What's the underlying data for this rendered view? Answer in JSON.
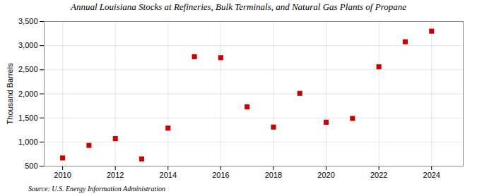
{
  "chart_data": {
    "type": "scatter",
    "title": "Annual Louisiana Stocks at Refineries, Bulk Terminals, and Natural Gas Plants of Propane",
    "ylabel": "Thousand Barrels",
    "annotations": [
      "Source: U.S. Energy Information Administration"
    ],
    "x": [
      2010,
      2011,
      2012,
      2013,
      2014,
      2015,
      2016,
      2017,
      2018,
      2019,
      2020,
      2021,
      2022,
      2023,
      2024
    ],
    "values": [
      670,
      930,
      1070,
      650,
      1290,
      2770,
      2750,
      1730,
      1310,
      2010,
      1410,
      1490,
      2560,
      3080,
      3300
    ],
    "color": "#cc0000",
    "marker": "square",
    "xlim": [
      2009.3,
      2025.2
    ],
    "xticks": [
      2010,
      2012,
      2014,
      2016,
      2018,
      2020,
      2022,
      2024
    ],
    "ylim": [
      500,
      3500
    ],
    "yticks": [
      500,
      {
        "value": 1000,
        "label": "1,000"
      },
      {
        "value": 1500,
        "label": "1,500"
      },
      {
        "value": 2000,
        "label": "2,000"
      },
      {
        "value": 2500,
        "label": "2,500"
      },
      {
        "value": 3000,
        "label": "3,000"
      },
      {
        "value": 3500,
        "label": "3,500"
      }
    ],
    "grid": true
  }
}
